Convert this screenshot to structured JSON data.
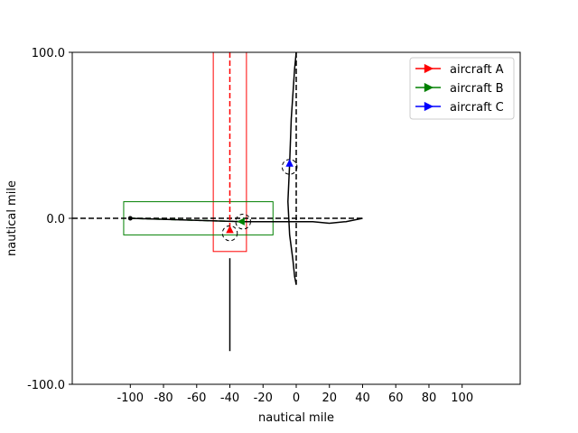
{
  "chart_data": {
    "type": "line",
    "title": "",
    "xlabel": "nautical mile",
    "ylabel": "nautical mile",
    "xlim": [
      -135,
      135
    ],
    "ylim": [
      -100,
      100
    ],
    "xticks": [
      -100,
      -80,
      -60,
      -40,
      -20,
      0,
      20,
      40,
      60,
      80,
      100
    ],
    "xtick_labels": [
      "-100",
      "-80",
      "-60",
      "-40",
      "-20",
      "0",
      "20",
      "40",
      "60",
      "80",
      "100"
    ],
    "yticks": [
      -100,
      0,
      100
    ],
    "ytick_labels": [
      "-100.0",
      "0.0",
      "100.0"
    ],
    "grid": false,
    "legend_position": "top-right",
    "series": [
      {
        "name": "aircraft A",
        "color": "#ff0000",
        "marker": "triangle-up",
        "position": [
          -40,
          -7
        ],
        "planned_path": [
          [
            -40,
            100
          ],
          [
            -40,
            -7
          ]
        ],
        "flown_path": [
          [
            -40,
            -24
          ],
          [
            -40,
            -80
          ]
        ],
        "corridor": {
          "x": [
            -50,
            -30
          ],
          "y": [
            -20,
            100
          ]
        }
      },
      {
        "name": "aircraft B",
        "color": "#008000",
        "marker": "triangle-left",
        "position": [
          -33,
          -2
        ],
        "planned_path": [
          [
            -100,
            0
          ],
          [
            -33,
            -2
          ]
        ],
        "flown_path": [
          [
            -100,
            0
          ],
          [
            -33,
            -2
          ]
        ],
        "corridor": {
          "x": [
            -104,
            -14
          ],
          "y": [
            -10,
            10
          ]
        }
      },
      {
        "name": "aircraft C",
        "color": "#0000ff",
        "marker": "triangle-up",
        "position": [
          -4,
          33
        ],
        "planned_path": [
          [
            0,
            100
          ],
          [
            0,
            -40
          ]
        ],
        "flown_path": [
          [
            0,
            100
          ],
          [
            -1,
            90
          ],
          [
            -3,
            60
          ],
          [
            -4,
            33
          ],
          [
            -5,
            10
          ],
          [
            -4,
            -10
          ],
          [
            -2,
            -25
          ],
          [
            -1,
            -35
          ],
          [
            0,
            -40
          ]
        ]
      }
    ],
    "other_paths": [
      {
        "style": "dashed",
        "points": [
          [
            -135,
            0
          ],
          [
            -100,
            0
          ],
          [
            40,
            0
          ]
        ]
      },
      {
        "style": "solid",
        "points": [
          [
            -33,
            -2
          ],
          [
            -10,
            -2
          ],
          [
            0,
            -2
          ],
          [
            10,
            -2
          ],
          [
            20,
            -3
          ],
          [
            30,
            -2
          ],
          [
            40,
            0
          ]
        ]
      }
    ],
    "safety_circles": [
      {
        "center": [
          -40,
          -9
        ],
        "radius": 4.5
      },
      {
        "center": [
          -32,
          -2
        ],
        "radius": 4.5
      },
      {
        "center": [
          -4,
          31
        ],
        "radius": 4.5
      }
    ]
  }
}
